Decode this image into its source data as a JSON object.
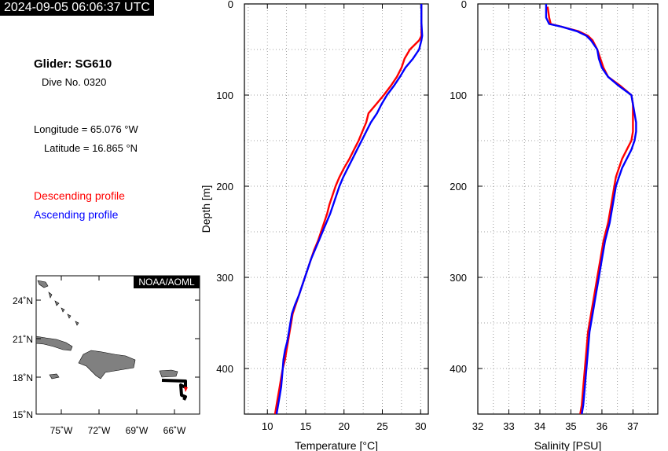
{
  "header": {
    "timestamp": "2024-09-05 06:06:37 UTC",
    "glider": "Glider: SG610",
    "dive": "Dive No. 0320",
    "longitude": "Longitude = 65.076 °W",
    "latitude": "Latitude = 16.865 °N"
  },
  "legend": {
    "descending": "Descending profile",
    "ascending": "Ascending profile",
    "descending_color": "#ff0000",
    "ascending_color": "#0000ff"
  },
  "map": {
    "credit": "NOAA/AOML",
    "lat_ticks": [
      "24˚N",
      "21˚N",
      "18˚N",
      "15˚N"
    ],
    "lon_ticks": [
      "75˚W",
      "72˚W",
      "69˚W",
      "66˚W"
    ],
    "land_color": "#808080",
    "track_color": "#000000",
    "position_color": "#ff0000"
  },
  "chart_data": [
    {
      "type": "line",
      "xlabel": "Temperature [°C]",
      "ylabel": "Depth [m]",
      "xlim": [
        7,
        31
      ],
      "ylim": [
        0,
        450
      ],
      "y_inverted": true,
      "x_ticks": [
        10,
        15,
        20,
        25,
        30
      ],
      "y_ticks": [
        0,
        100,
        200,
        300,
        400
      ],
      "grid": true,
      "series": [
        {
          "name": "Descending profile",
          "color": "#ff0000",
          "y": [
            0,
            20,
            35,
            40,
            50,
            60,
            70,
            80,
            90,
            100,
            110,
            120,
            130,
            140,
            150,
            160,
            170,
            180,
            190,
            200,
            210,
            220,
            230,
            240,
            250,
            260,
            270,
            280,
            290,
            300,
            310,
            320,
            330,
            340,
            350,
            360,
            370,
            380,
            390,
            400,
            410,
            420,
            430,
            440,
            450
          ],
          "x": [
            30.1,
            30.1,
            30.1,
            29.8,
            28.6,
            27.9,
            27.5,
            26.9,
            26.1,
            25.2,
            24.2,
            23.2,
            22.9,
            22.4,
            21.9,
            21.3,
            20.7,
            20.0,
            19.4,
            18.9,
            18.5,
            18.1,
            17.8,
            17.4,
            17.0,
            16.6,
            16.1,
            15.7,
            15.3,
            14.9,
            14.5,
            14.1,
            13.7,
            13.3,
            13.1,
            12.9,
            12.7,
            12.5,
            12.3,
            12.0,
            11.8,
            11.6,
            11.4,
            11.2,
            11.0
          ]
        },
        {
          "name": "Ascending profile",
          "color": "#0000ff",
          "y": [
            0,
            20,
            35,
            40,
            50,
            60,
            70,
            80,
            90,
            100,
            110,
            120,
            130,
            140,
            150,
            160,
            170,
            180,
            190,
            200,
            210,
            220,
            230,
            240,
            250,
            260,
            270,
            280,
            290,
            300,
            310,
            320,
            330,
            340,
            350,
            360,
            370,
            380,
            390,
            400,
            410,
            420,
            430,
            440,
            450
          ],
          "x": [
            30.1,
            30.1,
            30.2,
            30.1,
            29.8,
            29.0,
            28.0,
            27.3,
            26.5,
            25.6,
            24.9,
            24.3,
            23.5,
            22.9,
            22.3,
            21.7,
            21.1,
            20.5,
            19.9,
            19.4,
            19.0,
            18.6,
            18.2,
            17.7,
            17.2,
            16.7,
            16.2,
            15.7,
            15.3,
            14.9,
            14.5,
            14.1,
            13.6,
            13.2,
            13.0,
            12.8,
            12.6,
            12.3,
            12.1,
            12.0,
            11.9,
            11.8,
            11.6,
            11.4,
            11.2
          ]
        }
      ]
    },
    {
      "type": "line",
      "xlabel": "Salinity [PSU]",
      "ylabel": "",
      "xlim": [
        32,
        37.8
      ],
      "ylim": [
        0,
        450
      ],
      "y_inverted": true,
      "x_ticks": [
        32,
        33,
        34,
        35,
        36,
        37
      ],
      "y_ticks": [
        0,
        100,
        200,
        300,
        400
      ],
      "grid": true,
      "series": [
        {
          "name": "Descending profile",
          "color": "#ff0000",
          "y": [
            3,
            15,
            22,
            25,
            30,
            35,
            40,
            50,
            60,
            70,
            80,
            90,
            100,
            110,
            120,
            130,
            140,
            150,
            160,
            170,
            180,
            190,
            200,
            220,
            240,
            260,
            280,
            300,
            320,
            340,
            360,
            380,
            400,
            420,
            440,
            450
          ],
          "x": [
            34.25,
            34.3,
            34.35,
            34.7,
            35.25,
            35.55,
            35.7,
            35.85,
            35.95,
            36.05,
            36.2,
            36.6,
            36.95,
            37.0,
            37.0,
            37.0,
            37.0,
            36.95,
            36.8,
            36.65,
            36.55,
            36.45,
            36.4,
            36.3,
            36.2,
            36.05,
            35.95,
            35.85,
            35.75,
            35.65,
            35.55,
            35.5,
            35.45,
            35.4,
            35.35,
            35.3
          ]
        },
        {
          "name": "Ascending profile",
          "color": "#0000ff",
          "y": [
            0,
            15,
            22,
            25,
            30,
            35,
            40,
            50,
            60,
            70,
            80,
            90,
            100,
            110,
            120,
            130,
            140,
            150,
            160,
            170,
            180,
            190,
            200,
            220,
            240,
            260,
            280,
            300,
            320,
            340,
            360,
            380,
            400,
            420,
            440,
            450
          ],
          "x": [
            34.2,
            34.2,
            34.3,
            34.7,
            35.2,
            35.5,
            35.65,
            35.85,
            35.9,
            36.0,
            36.2,
            36.55,
            36.95,
            37.0,
            37.05,
            37.1,
            37.1,
            37.05,
            36.95,
            36.8,
            36.65,
            36.55,
            36.45,
            36.35,
            36.25,
            36.1,
            36.0,
            35.9,
            35.8,
            35.7,
            35.6,
            35.55,
            35.5,
            35.45,
            35.4,
            35.35
          ]
        }
      ]
    }
  ]
}
